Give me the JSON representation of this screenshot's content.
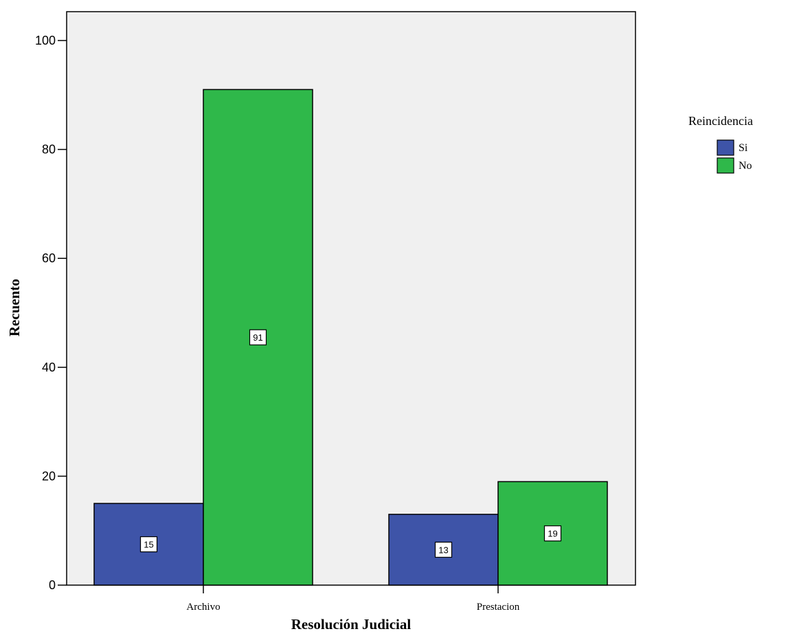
{
  "chart_data": {
    "type": "bar",
    "title": "",
    "xlabel": "Resolución Judicial",
    "ylabel": "Recuento",
    "categories": [
      "Archivo",
      "Prestacion"
    ],
    "series": [
      {
        "name": "Si",
        "values": [
          15,
          13
        ],
        "color": "#3E54A8"
      },
      {
        "name": "No",
        "values": [
          91,
          19
        ],
        "color": "#2FB84A"
      }
    ],
    "data_labels": [
      [
        "15",
        "13"
      ],
      [
        "91",
        "19"
      ]
    ],
    "ylim": [
      0,
      105
    ],
    "yticks": [
      0,
      20,
      40,
      60,
      80,
      100
    ],
    "grid": false,
    "legend": {
      "title": "Reincidencia",
      "position": "right",
      "entries": [
        "Si",
        "No"
      ]
    },
    "colors": {
      "plot_background": "#F0F0F0",
      "bar_edge": "#000000"
    }
  }
}
